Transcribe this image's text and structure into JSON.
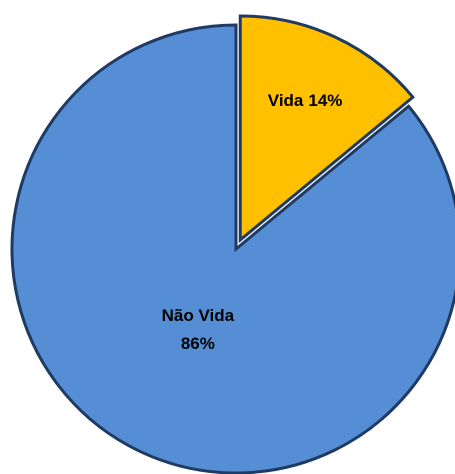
{
  "chart_data": {
    "type": "pie",
    "categories": [
      "Vida",
      "Não Vida"
    ],
    "values": [
      14,
      86
    ],
    "value_labels": [
      "14%",
      "86%"
    ],
    "colors": [
      "#FFC000",
      "#558ED5"
    ],
    "exploded": [
      true,
      false
    ],
    "start_angle": 0,
    "direction": "clockwise"
  }
}
